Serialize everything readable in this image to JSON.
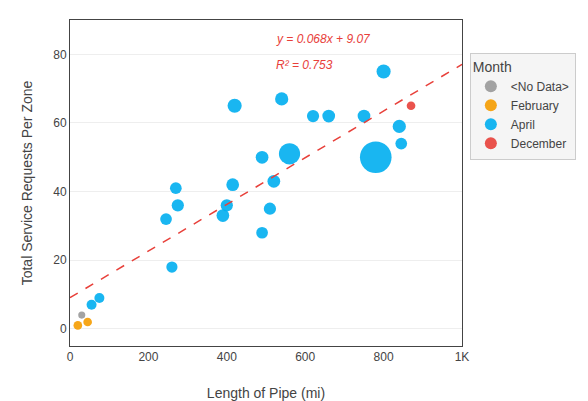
{
  "chart_data": {
    "type": "scatter",
    "xlabel": "Length of Pipe (mi)",
    "ylabel": "Total Service Requests Per Zone",
    "xlim": [
      0,
      1000
    ],
    "ylim": [
      -5,
      90
    ],
    "xticks": [
      0,
      200,
      400,
      600,
      800,
      {
        "value": 1000,
        "label": "1K"
      }
    ],
    "yticks": [
      0,
      20,
      40,
      60,
      80
    ],
    "grid": "y",
    "legend_title": "Month",
    "annotations": [
      {
        "text": "y = 0.068x + 9.07",
        "color": "#e8403a"
      },
      {
        "text": "R² = 0.753",
        "color": "#e8403a"
      }
    ],
    "series": [
      {
        "name": "<No Data>",
        "color": "#999999",
        "x": [
          30
        ],
        "values": [
          4
        ],
        "sizes": [
          20
        ]
      },
      {
        "name": "February",
        "color": "#f59c00",
        "x": [
          20,
          45
        ],
        "values": [
          1,
          2
        ],
        "sizes": [
          30,
          30
        ]
      },
      {
        "name": "April",
        "color": "#00aeef",
        "x": [
          55,
          75,
          260,
          245,
          275,
          270,
          390,
          400,
          415,
          420,
          490,
          490,
          510,
          520,
          540,
          560,
          620,
          660,
          750,
          780,
          800,
          840,
          845
        ],
        "values": [
          7,
          9,
          18,
          32,
          36,
          41,
          33,
          36,
          42,
          65,
          28,
          50,
          35,
          43,
          67,
          51,
          62,
          62,
          62,
          50,
          75,
          59,
          54
        ],
        "sizes": [
          40,
          40,
          50,
          55,
          60,
          55,
          65,
          60,
          65,
          80,
          55,
          65,
          60,
          65,
          70,
          180,
          60,
          65,
          65,
          400,
          80,
          70,
          55
        ]
      },
      {
        "name": "December",
        "color": "#e8403a",
        "x": [
          870
        ],
        "values": [
          65
        ],
        "sizes": [
          30
        ]
      },
      {
        "type": "line",
        "line_style": "dashed",
        "color": "#e8403a",
        "x": [
          0,
          1000
        ],
        "values": [
          9.07,
          77.07
        ]
      }
    ]
  }
}
